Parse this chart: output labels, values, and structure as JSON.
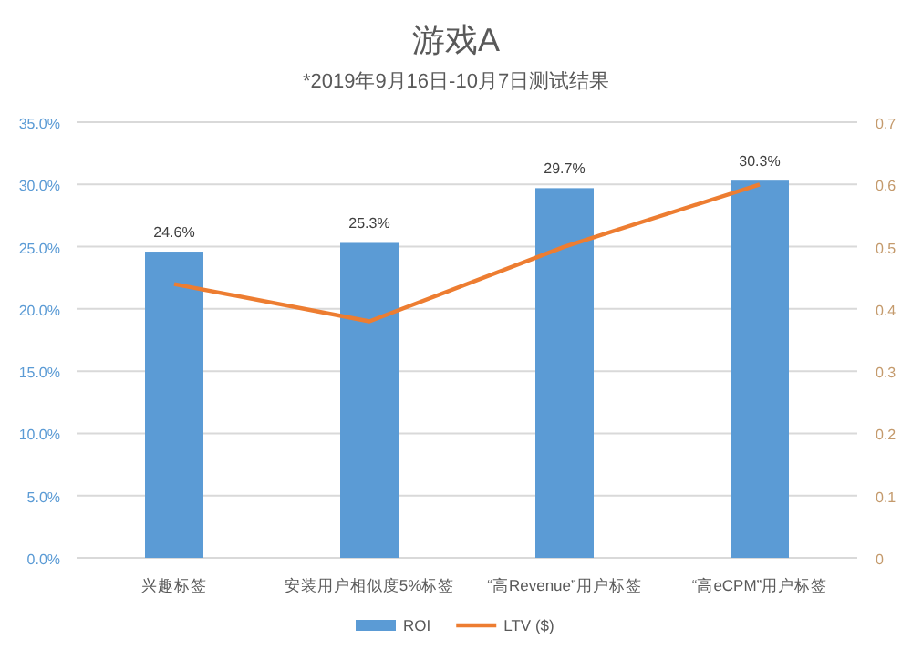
{
  "chart_data": {
    "type": "bar",
    "title": "游戏A",
    "subtitle": "*2019年9月16日-10月7日测试结果",
    "categories": [
      "兴趣标签",
      "安装用户相似度5%标签",
      "“高Revenue”用户标签",
      "“高eCPM”用户标签"
    ],
    "series": [
      {
        "name": "ROI",
        "color": "#5b9bd5",
        "values": [
          24.6,
          25.3,
          29.7,
          30.3
        ],
        "value_labels": [
          "24.6%",
          "25.3%",
          "29.7%",
          "30.3%"
        ]
      },
      {
        "name": "LTV ($)",
        "type": "line",
        "axis": "y2",
        "color": "#ed7d31",
        "values": [
          0.44,
          0.38,
          0.5,
          0.6
        ]
      }
    ],
    "ylim": [
      0,
      35
    ],
    "yticks": [
      {
        "value": 0,
        "label": "0.0%"
      },
      {
        "value": 5,
        "label": "5.0%"
      },
      {
        "value": 10,
        "label": "10.0%"
      },
      {
        "value": 15,
        "label": "15.0%"
      },
      {
        "value": 20,
        "label": "20.0%"
      },
      {
        "value": 25,
        "label": "25.0%"
      },
      {
        "value": 30,
        "label": "30.0%"
      },
      {
        "value": 35,
        "label": "35.0%"
      }
    ],
    "y2lim": [
      0,
      0.7
    ],
    "y2ticks": [
      0,
      0.1,
      0.2,
      0.3,
      0.4,
      0.5,
      0.6,
      0.7
    ],
    "grid": "y",
    "legend": "bottom",
    "marker": "none",
    "line_style": "solid"
  }
}
